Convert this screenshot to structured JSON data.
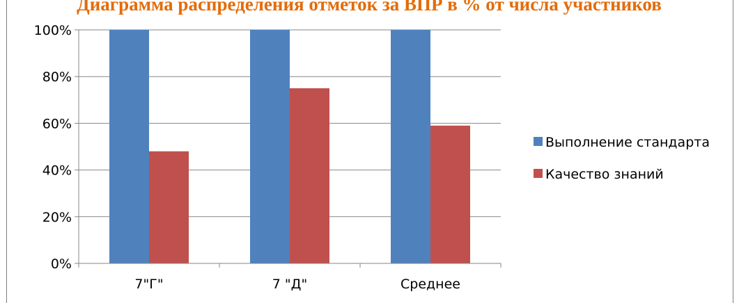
{
  "colors": {
    "title": "#e36c0a",
    "series_1": "#4f81bd",
    "series_2": "#c0504d",
    "grid": "#868686",
    "axis": "#868686"
  },
  "chart_data": {
    "type": "bar",
    "title": "Диаграмма распределения отметок за ВПР в % от числа участников",
    "categories": [
      "7\"Г\"",
      "7 \"Д\"",
      "Среднее"
    ],
    "series": [
      {
        "name": "Выполнение стандарта",
        "values": [
          100,
          100,
          100
        ]
      },
      {
        "name": "Качество знаний",
        "values": [
          48,
          75,
          59
        ]
      }
    ],
    "ylim": [
      0,
      100
    ],
    "yticks": [
      "0%",
      "20%",
      "40%",
      "60%",
      "80%",
      "100%"
    ],
    "grid": true,
    "legend": "right"
  }
}
